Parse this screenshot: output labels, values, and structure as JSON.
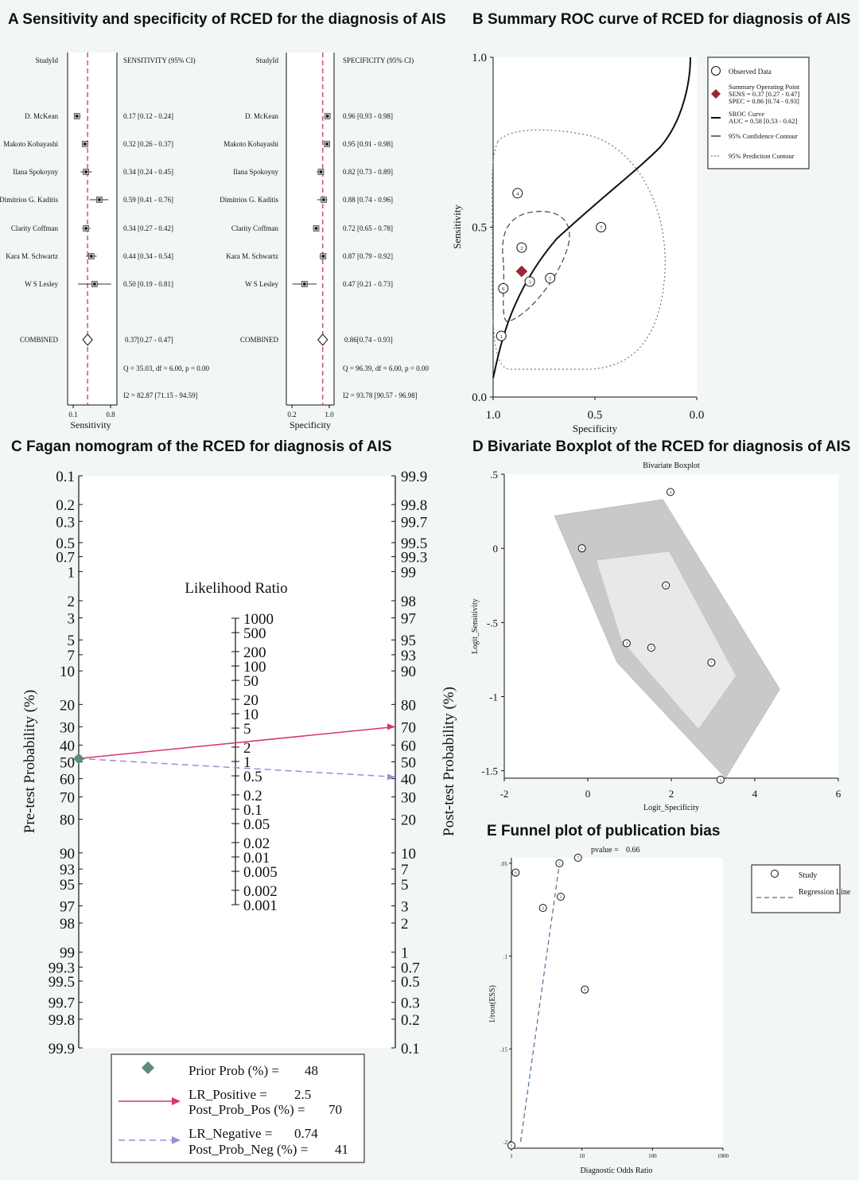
{
  "panels": {
    "A": {
      "title": "A Sensitivity and specificity of RCED for the diagnosis of AIS"
    },
    "B": {
      "title": "B Summary ROC curve of RCED for diagnosis of AIS"
    },
    "C": {
      "title": "C Fagan nomogram of the RCED for diagnosis of AIS"
    },
    "D": {
      "title": "D Bivariate Boxplot of the RCED for diagnosis of AIS"
    },
    "E": {
      "title": "E Funnel plot of publication bias"
    }
  },
  "chart_data": [
    {
      "id": "forest-sensitivity",
      "type": "forest",
      "study_header": "StudyId",
      "value_header": "SENSITIVITY (95% CI)",
      "xlabel": "Sensitivity",
      "xlim": [
        0.1,
        0.8
      ],
      "ticks": [
        "0.1",
        "0.8"
      ],
      "ref_line": 0.37,
      "studies": [
        "D. McKean",
        "Makoto Kobayashi",
        "Ilana Spokoyny",
        "Dimitrios G. Kaditis",
        "Clarity Coffman",
        "Kara M. Schwartz",
        "W S Lesley"
      ],
      "estimates": [
        0.17,
        0.32,
        0.34,
        0.59,
        0.34,
        0.44,
        0.5
      ],
      "lower": [
        0.12,
        0.26,
        0.24,
        0.41,
        0.27,
        0.34,
        0.19
      ],
      "upper": [
        0.24,
        0.37,
        0.45,
        0.76,
        0.42,
        0.54,
        0.81
      ],
      "labels": [
        "0.17 [0.12 - 0.24]",
        "0.32 [0.26 - 0.37]",
        "0.34 [0.24 - 0.45]",
        "0.59 [0.41 - 0.76]",
        "0.34 [0.27 - 0.42]",
        "0.44 [0.34 - 0.54]",
        "0.50 [0.19 - 0.81]"
      ],
      "combined_label": "COMBINED",
      "combined": {
        "est": 0.37,
        "lo": 0.27,
        "hi": 0.47,
        "text": "0.37[0.27 - 0.47]"
      },
      "q_text": "Q = 35.03, df = 6.00, p = 0.00",
      "i2_text": "I2 = 82.87 [71.15 - 94.59]"
    },
    {
      "id": "forest-specificity",
      "type": "forest",
      "study_header": "StudyId",
      "value_header": "SPECIFICITY (95% CI)",
      "xlabel": "Specificity",
      "xlim": [
        0.2,
        1.0
      ],
      "ticks": [
        "0.2",
        "1.0"
      ],
      "ref_line": 0.86,
      "studies": [
        "D. McKean",
        "Makoto Kobayashi",
        "Ilana Spokoyny",
        "Dimitrios G. Kaditis",
        "Clarity Coffman",
        "Kara M. Schwartz",
        "W S Lesley"
      ],
      "estimates": [
        0.96,
        0.95,
        0.82,
        0.88,
        0.72,
        0.87,
        0.47
      ],
      "lower": [
        0.93,
        0.91,
        0.73,
        0.74,
        0.65,
        0.79,
        0.21
      ],
      "upper": [
        0.98,
        0.98,
        0.89,
        0.96,
        0.78,
        0.92,
        0.73
      ],
      "labels": [
        "0.96 [0.93 - 0.98]",
        "0.95 [0.91 - 0.98]",
        "0.82 [0.73 - 0.89]",
        "0.88 [0.74 - 0.96]",
        "0.72 [0.65 - 0.78]",
        "0.87 [0.79 - 0.92]",
        "0.47 [0.21 - 0.73]"
      ],
      "combined_label": "COMBINED",
      "combined": {
        "est": 0.86,
        "lo": 0.74,
        "hi": 0.93,
        "text": "0.86[0.74 - 0.93]"
      },
      "q_text": "Q = 96.39, df = 6.00, p = 0.00",
      "i2_text": "I2 = 93.78 [90.57 - 96.98]"
    },
    {
      "id": "sroc",
      "type": "scatter",
      "xlabel": "Specificity",
      "ylabel": "Sensitivity",
      "xlim": [
        1.0,
        0.0
      ],
      "ylim": [
        0.0,
        1.0
      ],
      "xticks": [
        "1.0",
        "0.5",
        "0.0"
      ],
      "yticks": [
        "0.0",
        "0.5",
        "1.0"
      ],
      "points": [
        {
          "label": "1",
          "spec": 0.96,
          "sens": 0.18
        },
        {
          "label": "2",
          "spec": 0.86,
          "sens": 0.44
        },
        {
          "label": "3",
          "spec": 0.82,
          "sens": 0.34
        },
        {
          "label": "4",
          "spec": 0.88,
          "sens": 0.6
        },
        {
          "label": "5",
          "spec": 0.72,
          "sens": 0.35
        },
        {
          "label": "6",
          "spec": 0.95,
          "sens": 0.32
        },
        {
          "label": "7",
          "spec": 0.47,
          "sens": 0.5
        }
      ],
      "summary_point": {
        "spec": 0.86,
        "sens": 0.37
      },
      "legend": {
        "observed": "Observed Data",
        "summary_title": "Summary Operating Point",
        "summary_sens": "SENS = 0.37 [0.27 - 0.47]",
        "summary_spec": "SPEC = 0.86 [0.74 - 0.93]",
        "sroc_title": "SROC Curve",
        "sroc_auc": "AUC = 0.58 [0.53 - 0.62]",
        "confidence": "95% Confidence Contour",
        "prediction": "95% Prediction Contour"
      }
    },
    {
      "id": "fagan",
      "type": "nomogram",
      "left_label": "Pre-test Probability (%)",
      "right_label": "Post-test Probability (%)",
      "center_label": "Likelihood Ratio",
      "left_ticks": [
        "0.1",
        "0.2",
        "0.3",
        "0.5",
        "0.7",
        "1",
        "2",
        "3",
        "5",
        "7",
        "10",
        "20",
        "30",
        "40",
        "50",
        "60",
        "70",
        "80",
        "90",
        "93",
        "95",
        "97",
        "98",
        "99",
        "99.3",
        "99.5",
        "99.7",
        "99.8",
        "99.9"
      ],
      "right_ticks": [
        "99.9",
        "99.8",
        "99.7",
        "99.5",
        "99.3",
        "99",
        "98",
        "97",
        "95",
        "93",
        "90",
        "80",
        "70",
        "60",
        "50",
        "40",
        "30",
        "20",
        "10",
        "7",
        "5",
        "3",
        "2",
        "1",
        "0.7",
        "0.5",
        "0.3",
        "0.2",
        "0.1"
      ],
      "lr_ticks": [
        "1000",
        "500",
        "200",
        "100",
        "50",
        "20",
        "10",
        "5",
        "2",
        "1",
        "0.5",
        "0.2",
        "0.1",
        "0.05",
        "0.02",
        "0.01",
        "0.005",
        "0.002",
        "0.001"
      ],
      "prior_prob": 48,
      "lr_positive": 2.5,
      "post_prob_pos": 70,
      "lr_negative": 0.74,
      "post_prob_neg": 41,
      "colors": {
        "positive": "#d7356a",
        "negative": "#9a8fd8",
        "prior": "#5f8a7e"
      },
      "legend": {
        "prior": "Prior Prob (%) =",
        "prior_val": "48",
        "lrp": "LR_Positive =",
        "lrp_val": "2.5",
        "ppp": "Post_Prob_Pos (%) =",
        "ppp_val": "70",
        "lrn": "LR_Negative =",
        "lrn_val": "0.74",
        "ppn": "Post_Prob_Neg (%) =",
        "ppn_val": "41"
      }
    },
    {
      "id": "bivariate",
      "type": "scatter",
      "title": "Bivariate Boxplot",
      "xlabel": "Logit_Specificity",
      "ylabel": "Logit_Sensitivity",
      "xlim": [
        -2,
        6
      ],
      "ylim": [
        -1.55,
        0.5
      ],
      "xticks": [
        "-2",
        "0",
        "2",
        "4",
        "6"
      ],
      "yticks": [
        ".5",
        "0",
        "-.5",
        "-1",
        "-1.5"
      ],
      "points": [
        {
          "label": "1",
          "x": 3.18,
          "y": -1.56
        },
        {
          "label": "2",
          "x": 1.87,
          "y": -0.25
        },
        {
          "label": "3",
          "x": 0.93,
          "y": -0.64
        },
        {
          "label": "4",
          "x": 1.98,
          "y": 0.38
        },
        {
          "label": "5",
          "x": 1.52,
          "y": -0.67
        },
        {
          "label": "6",
          "x": -0.14,
          "y": 0.0
        },
        {
          "label": "7",
          "x": 2.96,
          "y": -0.77
        }
      ],
      "outer_hull": [
        [
          -0.8,
          0.22
        ],
        [
          1.8,
          0.33
        ],
        [
          4.6,
          -0.95
        ],
        [
          3.3,
          -1.55
        ],
        [
          0.7,
          -0.77
        ]
      ],
      "inner_hull": [
        [
          0.2,
          -0.08
        ],
        [
          1.95,
          -0.02
        ],
        [
          3.55,
          -0.86
        ],
        [
          2.65,
          -1.22
        ],
        [
          0.8,
          -0.62
        ]
      ]
    },
    {
      "id": "funnel",
      "type": "scatter",
      "pvalue_label": "pvalue  =",
      "pvalue": "0.66",
      "xlabel": "Diagnostic Odds Ratio",
      "ylabel": "1/root(ESS)",
      "xlim": [
        1,
        1000
      ],
      "xscale": "log",
      "ylim": [
        0.2,
        0.05
      ],
      "xticks": [
        "1",
        "10",
        "100",
        "1000"
      ],
      "yticks": [
        ".05",
        ".1",
        ".15",
        ".2"
      ],
      "points": [
        {
          "label": "1",
          "x": 1.0,
          "y": 0.202
        },
        {
          "label": "2",
          "x": 5.0,
          "y": 0.068
        },
        {
          "label": "3",
          "x": 2.8,
          "y": 0.074
        },
        {
          "label": "4",
          "x": 11.0,
          "y": 0.118
        },
        {
          "label": "5",
          "x": 4.8,
          "y": 0.05
        },
        {
          "label": "6",
          "x": 1.15,
          "y": 0.055
        },
        {
          "label": "7",
          "x": 8.8,
          "y": 0.047
        }
      ],
      "regression": {
        "x": [
          1.35,
          4.8
        ],
        "y": [
          0.2,
          0.05
        ]
      },
      "legend": {
        "study": "Study",
        "regression": "Regression Line"
      }
    }
  ]
}
